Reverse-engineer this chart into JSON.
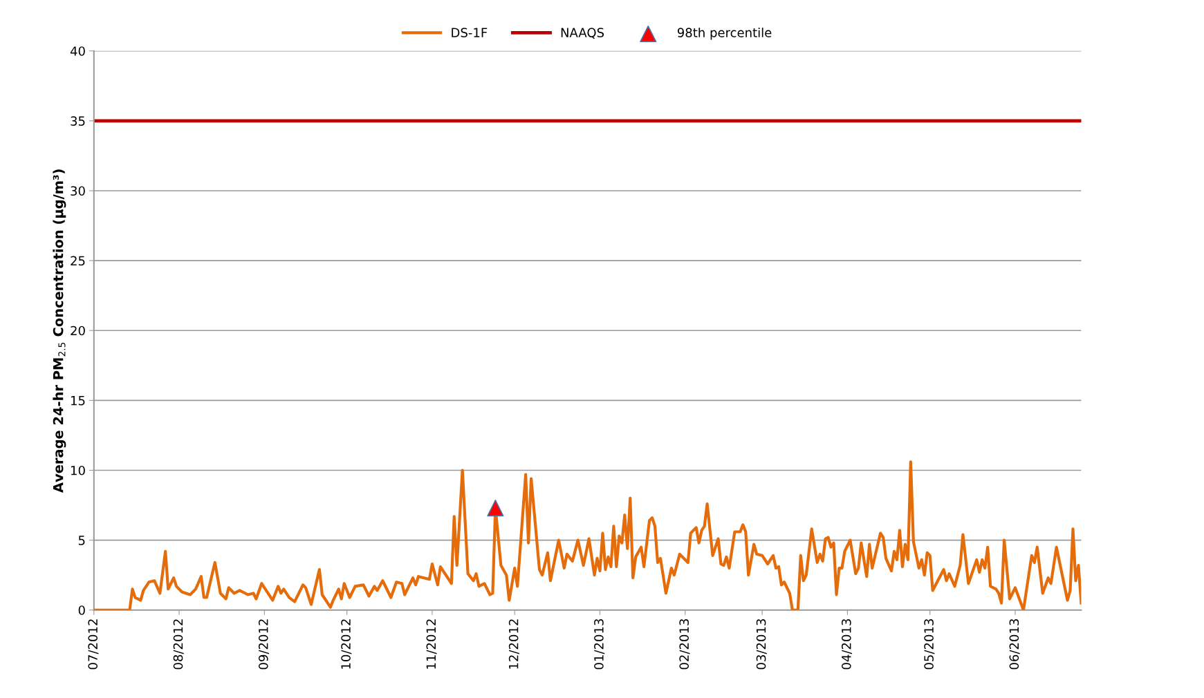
{
  "chart_data": {
    "type": "line",
    "ylabel": "Average 24-hr PM$_{2.5}$ Concentration (µg/m³)",
    "xlim": [
      "2012-07-01",
      "2013-06-25"
    ],
    "xticks": [
      {
        "value": "2012-07-01",
        "label": "07/2012"
      },
      {
        "value": "2012-08-01",
        "label": "08/2012"
      },
      {
        "value": "2012-09-01",
        "label": "09/2012"
      },
      {
        "value": "2012-10-01",
        "label": "10/2012"
      },
      {
        "value": "2012-11-01",
        "label": "11/2012"
      },
      {
        "value": "2012-12-01",
        "label": "12/2012"
      },
      {
        "value": "2013-01-01",
        "label": "01/2013"
      },
      {
        "value": "2013-02-01",
        "label": "02/2013"
      },
      {
        "value": "2013-03-01",
        "label": "03/2013"
      },
      {
        "value": "2013-04-01",
        "label": "04/2013"
      },
      {
        "value": "2013-05-01",
        "label": "05/2013"
      },
      {
        "value": "2013-06-01",
        "label": "06/2013"
      }
    ],
    "ylim": [
      0,
      40
    ],
    "yticks": [
      0,
      5,
      10,
      15,
      20,
      25,
      30,
      35,
      40
    ],
    "grid": "y",
    "legend": "top",
    "ref_lines": [
      {
        "axis": "y",
        "value": 35,
        "label": "NAAQS",
        "color": "#c00000"
      }
    ],
    "series": [
      {
        "name": "DS-1F",
        "color": "#e46c0a",
        "marker": "none",
        "x": [
          "2012-07-01",
          "2012-07-14",
          "2012-07-15",
          "2012-07-16",
          "2012-07-18",
          "2012-07-19",
          "2012-07-21",
          "2012-07-23",
          "2012-07-25",
          "2012-07-27",
          "2012-07-28",
          "2012-07-30",
          "2012-07-31",
          "2012-08-02",
          "2012-08-05",
          "2012-08-07",
          "2012-08-09",
          "2012-08-10",
          "2012-08-11",
          "2012-08-14",
          "2012-08-16",
          "2012-08-18",
          "2012-08-19",
          "2012-08-21",
          "2012-08-23",
          "2012-08-26",
          "2012-08-28",
          "2012-08-29",
          "2012-08-31",
          "2012-09-04",
          "2012-09-06",
          "2012-09-07",
          "2012-09-08",
          "2012-09-10",
          "2012-09-12",
          "2012-09-15",
          "2012-09-16",
          "2012-09-18",
          "2012-09-21",
          "2012-09-22",
          "2012-09-25",
          "2012-09-26",
          "2012-09-28",
          "2012-09-29",
          "2012-09-30",
          "2012-10-02",
          "2012-10-04",
          "2012-10-07",
          "2012-10-09",
          "2012-10-11",
          "2012-10-12",
          "2012-10-14",
          "2012-10-17",
          "2012-10-19",
          "2012-10-21",
          "2012-10-22",
          "2012-10-25",
          "2012-10-26",
          "2012-10-27",
          "2012-10-31",
          "2012-11-01",
          "2012-11-03",
          "2012-11-04",
          "2012-11-06",
          "2012-11-08",
          "2012-11-09",
          "2012-11-10",
          "2012-11-12",
          "2012-11-14",
          "2012-11-16",
          "2012-11-17",
          "2012-11-18",
          "2012-11-20",
          "2012-11-22",
          "2012-11-23",
          "2012-11-24",
          "2012-11-26",
          "2012-11-28",
          "2012-11-29",
          "2012-12-01",
          "2012-12-02",
          "2012-12-05",
          "2012-12-06",
          "2012-12-07",
          "2012-12-10",
          "2012-12-11",
          "2012-12-13",
          "2012-12-14",
          "2012-12-17",
          "2012-12-19",
          "2012-12-20",
          "2012-12-22",
          "2012-12-24",
          "2012-12-26",
          "2012-12-28",
          "2012-12-30",
          "2012-12-31",
          "2013-01-01",
          "2013-01-02",
          "2013-01-03",
          "2013-01-04",
          "2013-01-05",
          "2013-01-06",
          "2013-01-07",
          "2013-01-08",
          "2013-01-09",
          "2013-01-10",
          "2013-01-11",
          "2013-01-12",
          "2013-01-13",
          "2013-01-14",
          "2013-01-16",
          "2013-01-17",
          "2013-01-19",
          "2013-01-20",
          "2013-01-21",
          "2013-01-22",
          "2013-01-23",
          "2013-01-25",
          "2013-01-27",
          "2013-01-28",
          "2013-01-30",
          "2013-02-02",
          "2013-02-03",
          "2013-02-05",
          "2013-02-06",
          "2013-02-07",
          "2013-02-08",
          "2013-02-09",
          "2013-02-11",
          "2013-02-13",
          "2013-02-14",
          "2013-02-15",
          "2013-02-16",
          "2013-02-17",
          "2013-02-19",
          "2013-02-21",
          "2013-02-22",
          "2013-02-23",
          "2013-02-24",
          "2013-02-26",
          "2013-02-27",
          "2013-03-01",
          "2013-03-03",
          "2013-03-05",
          "2013-03-06",
          "2013-03-07",
          "2013-03-08",
          "2013-03-09",
          "2013-03-11",
          "2013-03-12",
          "2013-03-14",
          "2013-03-15",
          "2013-03-16",
          "2013-03-17",
          "2013-03-19",
          "2013-03-21",
          "2013-03-22",
          "2013-03-23",
          "2013-03-24",
          "2013-03-25",
          "2013-03-26",
          "2013-03-27",
          "2013-03-28",
          "2013-03-29",
          "2013-03-30",
          "2013-03-31",
          "2013-04-02",
          "2013-04-04",
          "2013-04-05",
          "2013-04-06",
          "2013-04-08",
          "2013-04-09",
          "2013-04-10",
          "2013-04-13",
          "2013-04-14",
          "2013-04-15",
          "2013-04-17",
          "2013-04-18",
          "2013-04-19",
          "2013-04-20",
          "2013-04-21",
          "2013-04-22",
          "2013-04-23",
          "2013-04-24",
          "2013-04-25",
          "2013-04-27",
          "2013-04-28",
          "2013-04-29",
          "2013-04-30",
          "2013-05-01",
          "2013-05-02",
          "2013-05-06",
          "2013-05-07",
          "2013-05-08",
          "2013-05-10",
          "2013-05-12",
          "2013-05-13",
          "2013-05-15",
          "2013-05-18",
          "2013-05-19",
          "2013-05-20",
          "2013-05-21",
          "2013-05-22",
          "2013-05-23",
          "2013-05-25",
          "2013-05-26",
          "2013-05-27",
          "2013-05-28",
          "2013-05-30",
          "2013-06-01",
          "2013-06-04",
          "2013-06-07",
          "2013-06-08",
          "2013-06-09",
          "2013-06-11",
          "2013-06-13",
          "2013-06-14",
          "2013-06-16",
          "2013-06-20",
          "2013-06-21",
          "2013-06-22",
          "2013-06-23",
          "2013-06-24",
          "2013-06-25"
        ],
        "values": [
          0,
          0,
          1.5,
          0.9,
          0.7,
          1.4,
          2.0,
          2.1,
          1.2,
          4.2,
          1.5,
          2.3,
          1.7,
          1.3,
          1.1,
          1.5,
          2.4,
          0.9,
          0.9,
          3.4,
          1.2,
          0.8,
          1.6,
          1.2,
          1.4,
          1.1,
          1.2,
          0.8,
          1.9,
          0.7,
          1.7,
          1.2,
          1.5,
          0.9,
          0.6,
          1.8,
          1.6,
          0.4,
          2.9,
          1.1,
          0.2,
          0.7,
          1.5,
          0.8,
          1.9,
          0.9,
          1.7,
          1.8,
          1.0,
          1.7,
          1.4,
          2.1,
          0.9,
          2.0,
          1.9,
          1.1,
          2.3,
          1.8,
          2.4,
          2.2,
          3.3,
          1.8,
          3.1,
          2.5,
          1.9,
          6.7,
          3.2,
          10.0,
          2.6,
          2.1,
          2.6,
          1.7,
          1.9,
          1.1,
          1.2,
          7.3,
          3.2,
          2.5,
          0.7,
          3.0,
          1.7,
          9.7,
          4.8,
          9.4,
          2.9,
          2.5,
          4.1,
          2.1,
          5.0,
          3.0,
          4.0,
          3.5,
          5.0,
          3.2,
          5.1,
          2.5,
          3.7,
          2.8,
          5.5,
          2.9,
          3.8,
          3.1,
          6.0,
          3.1,
          5.3,
          4.8,
          6.8,
          4.4,
          8.0,
          2.3,
          3.8,
          4.5,
          3.1,
          6.4,
          6.6,
          6.0,
          3.4,
          3.7,
          1.2,
          3.0,
          2.5,
          4.0,
          3.4,
          5.5,
          5.9,
          4.8,
          5.7,
          6.0,
          7.6,
          3.9,
          5.1,
          3.3,
          3.2,
          3.8,
          3.0,
          5.6,
          5.6,
          6.1,
          5.6,
          2.5,
          4.7,
          4.0,
          3.9,
          3.3,
          3.9,
          3.0,
          3.1,
          1.8,
          2.0,
          1.2,
          0,
          0,
          3.9,
          2.1,
          2.5,
          5.8,
          3.4,
          4.0,
          3.5,
          5.1,
          5.2,
          4.5,
          4.8,
          1.1,
          3.0,
          3.0,
          4.2,
          5.0,
          2.6,
          3.0,
          4.8,
          2.4,
          4.7,
          3.0,
          5.5,
          5.2,
          3.7,
          2.8,
          4.2,
          3.6,
          5.7,
          3.1,
          4.7,
          3.6,
          10.6,
          4.9,
          3.0,
          3.6,
          2.5,
          4.1,
          3.9,
          1.4,
          2.9,
          2.1,
          2.6,
          1.7,
          3.2,
          5.4,
          1.9,
          3.6,
          2.7,
          3.6,
          3.0,
          4.5,
          1.7,
          1.5,
          1.2,
          0.5,
          5.0,
          0.8,
          1.6,
          0,
          3.9,
          3.4,
          4.5,
          1.2,
          2.3,
          1.9,
          4.5,
          0.7,
          1.4,
          5.8,
          2.1,
          3.2,
          0.5
        ]
      },
      {
        "name": "98th percentile",
        "type": "scatter",
        "color": "#ff0000",
        "marker": "triangle",
        "x": [
          "2012-11-24"
        ],
        "values": [
          7.3
        ]
      }
    ]
  }
}
